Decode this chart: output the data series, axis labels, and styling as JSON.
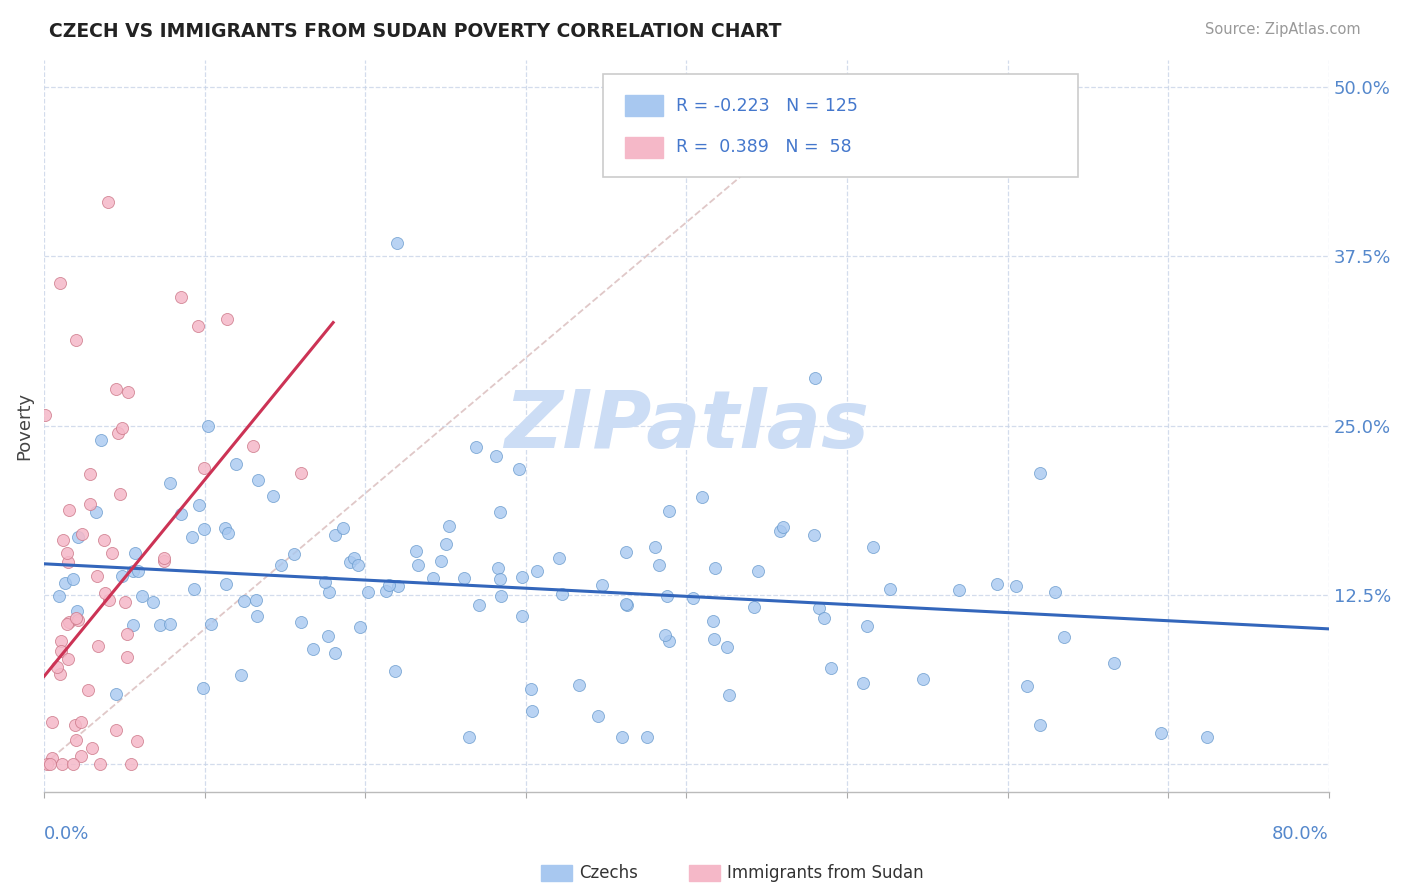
{
  "title": "CZECH VS IMMIGRANTS FROM SUDAN POVERTY CORRELATION CHART",
  "source": "Source: ZipAtlas.com",
  "ylabel": "Poverty",
  "xmin": 0.0,
  "xmax": 0.8,
  "ymin": -0.02,
  "ymax": 0.52,
  "yticks": [
    0.0,
    0.125,
    0.25,
    0.375,
    0.5
  ],
  "ytick_labels": [
    "",
    "12.5%",
    "25.0%",
    "37.5%",
    "50.0%"
  ],
  "czech_color": "#a8c8f0",
  "czech_edge_color": "#6699cc",
  "sudan_color": "#f5b8c8",
  "sudan_edge_color": "#cc7788",
  "czech_line_color": "#3366bb",
  "sudan_line_color": "#cc3355",
  "diagonal_color": "#e0c8c8",
  "watermark_color": "#ccddf5",
  "czech_r": -0.223,
  "czech_n": 125,
  "sudan_r": 0.389,
  "sudan_n": 58,
  "czech_intercept": 0.148,
  "czech_slope": -0.06,
  "sudan_intercept": 0.065,
  "sudan_slope": 1.45,
  "sudan_xmax_line": 0.18
}
